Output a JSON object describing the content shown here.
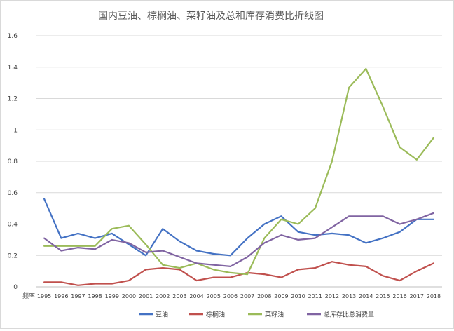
{
  "chart_data": {
    "type": "line",
    "title": "国内豆油、棕榈油、菜籽油及总和库存消费比折线图",
    "xlabel": "频率",
    "ylabel": "",
    "categories": [
      "1995",
      "1996",
      "1997",
      "1998",
      "1999",
      "2000",
      "2001",
      "2002",
      "2003",
      "2004",
      "2005",
      "2006",
      "2007",
      "2008",
      "2009",
      "2010",
      "2011",
      "2012",
      "2013",
      "2014",
      "2015",
      "2016",
      "2017",
      "2018"
    ],
    "ylim": [
      0,
      1.6
    ],
    "yticks": [
      "0",
      "0.2",
      "0.4",
      "0.6",
      "0.8",
      "1",
      "1.2",
      "1.4",
      "1.6"
    ],
    "grid": true,
    "legend_position": "bottom",
    "series": [
      {
        "name": "豆油",
        "color": "#4472c4",
        "values": [
          0.56,
          0.31,
          0.34,
          0.31,
          0.34,
          0.27,
          0.2,
          0.37,
          0.29,
          0.23,
          0.21,
          0.2,
          0.31,
          0.4,
          0.45,
          0.35,
          0.33,
          0.34,
          0.33,
          0.28,
          0.31,
          0.35,
          0.43,
          0.43
        ]
      },
      {
        "name": "棕榈油",
        "color": "#c0504d",
        "values": [
          0.03,
          0.03,
          0.01,
          0.02,
          0.02,
          0.04,
          0.11,
          0.12,
          0.11,
          0.04,
          0.06,
          0.06,
          0.09,
          0.08,
          0.06,
          0.11,
          0.12,
          0.16,
          0.14,
          0.13,
          0.07,
          0.04,
          0.1,
          0.15
        ]
      },
      {
        "name": "菜籽油",
        "color": "#9bbb59",
        "values": [
          0.26,
          0.26,
          0.26,
          0.26,
          0.37,
          0.39,
          0.27,
          0.14,
          0.12,
          0.15,
          0.11,
          0.09,
          0.08,
          0.31,
          0.43,
          0.4,
          0.5,
          0.8,
          1.27,
          1.39,
          1.15,
          0.89,
          0.81,
          0.95
        ]
      },
      {
        "name": "总库存比总消费量",
        "color": "#8064a2",
        "values": [
          0.31,
          0.23,
          0.25,
          0.24,
          0.3,
          0.28,
          0.22,
          0.23,
          0.19,
          0.15,
          0.14,
          0.13,
          0.19,
          0.28,
          0.33,
          0.3,
          0.31,
          0.38,
          0.45,
          0.45,
          0.45,
          0.4,
          0.43,
          0.47
        ]
      }
    ]
  }
}
